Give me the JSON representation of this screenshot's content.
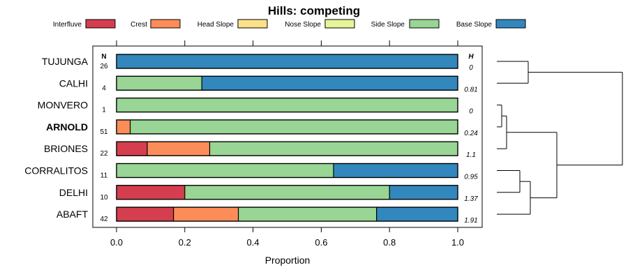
{
  "chart_data": {
    "type": "bar",
    "stacked": true,
    "orientation": "horizontal",
    "title": "Hills: competing",
    "xlabel": "Proportion",
    "ylabel": "",
    "xlim": [
      0,
      1
    ],
    "xticks": [
      0,
      0.2,
      0.4,
      0.6,
      0.8,
      1
    ],
    "xtick_labels": [
      "0.0",
      "0.2",
      "0.4",
      "0.6",
      "0.8",
      "1.0"
    ],
    "legend_position": "top",
    "n_header": "N",
    "h_header": "H",
    "highlight_row": "ARNOLD",
    "categories": [
      "TUJUNGA",
      "CALHI",
      "MONVERO",
      "ARNOLD",
      "BRIONES",
      "CORRALITOS",
      "DELHI",
      "ABAFT"
    ],
    "n_values": [
      "26",
      "4",
      "1",
      "51",
      "22",
      "11",
      "10",
      "42"
    ],
    "h_values": [
      "0",
      "0.81",
      "0",
      "0.24",
      "1.1",
      "0.95",
      "1.37",
      "1.91"
    ],
    "series": [
      {
        "name": "Interfluve",
        "color": "#D53E4F",
        "values": [
          0,
          0,
          0,
          0,
          0.09,
          0,
          0.2,
          0.167
        ]
      },
      {
        "name": "Crest",
        "color": "#FC8D59",
        "values": [
          0,
          0,
          0,
          0.04,
          0.183,
          0,
          0,
          0.19
        ]
      },
      {
        "name": "Head Slope",
        "color": "#FEE08B",
        "values": [
          0,
          0,
          0,
          0,
          0,
          0,
          0,
          0
        ]
      },
      {
        "name": "Nose Slope",
        "color": "#E6F598",
        "values": [
          0,
          0,
          0,
          0,
          0,
          0,
          0,
          0
        ]
      },
      {
        "name": "Side Slope",
        "color": "#99D594",
        "values": [
          0,
          0.25,
          1,
          0.96,
          0.727,
          0.636,
          0.6,
          0.405
        ]
      },
      {
        "name": "Base Slope",
        "color": "#3288BD",
        "values": [
          1,
          0.75,
          0,
          0,
          0,
          0.364,
          0.2,
          0.238
        ]
      }
    ]
  }
}
